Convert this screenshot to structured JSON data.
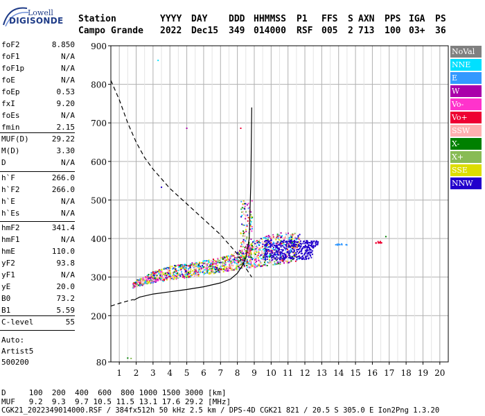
{
  "logo": {
    "top": "Lowell",
    "main": "DIGISONDE"
  },
  "header": {
    "labels": [
      "Station",
      "YYYY",
      "DAY",
      "DDD",
      "HHMMSS",
      "P1",
      "FFS",
      "S",
      "AXN",
      "PPS",
      "IGA",
      "PS"
    ],
    "values": [
      "Campo Grande",
      "2022",
      "Dec15",
      "349",
      "014000",
      "RSF",
      "005",
      "2",
      "713",
      "100",
      "03+",
      "36"
    ]
  },
  "params_group1": [
    {
      "label": "foF2",
      "value": "8.850"
    },
    {
      "label": "foF1",
      "value": "N/A"
    },
    {
      "label": "foF1p",
      "value": "N/A"
    },
    {
      "label": "foE",
      "value": "N/A"
    },
    {
      "label": "foEp",
      "value": "0.53"
    },
    {
      "label": "fxI",
      "value": "9.20"
    },
    {
      "label": "foEs",
      "value": "N/A"
    },
    {
      "label": "fmin",
      "value": "2.15"
    }
  ],
  "params_group2": [
    {
      "label": "MUF(D)",
      "value": "29.22"
    },
    {
      "label": "M(D)",
      "value": "3.30"
    },
    {
      "label": "D",
      "value": "N/A"
    }
  ],
  "params_group3": [
    {
      "label": "h`F",
      "value": "266.0"
    },
    {
      "label": "h`F2",
      "value": "266.0"
    },
    {
      "label": "h`E",
      "value": "N/A"
    },
    {
      "label": "h`Es",
      "value": "N/A"
    }
  ],
  "params_group4": [
    {
      "label": "hmF2",
      "value": "341.4"
    },
    {
      "label": "hmF1",
      "value": "N/A"
    },
    {
      "label": "hmE",
      "value": "110.0"
    },
    {
      "label": "yF2",
      "value": "93.8"
    },
    {
      "label": "yF1",
      "value": "N/A"
    },
    {
      "label": "yE",
      "value": "20.0"
    },
    {
      "label": "B0",
      "value": "73.2"
    },
    {
      "label": "B1",
      "value": "5.59"
    }
  ],
  "params_group5": [
    {
      "label": "C-level",
      "value": "55"
    }
  ],
  "autoscale": [
    "Auto:",
    "Artist5",
    "500200"
  ],
  "footer": {
    "d_line": "D     100  200  400  600  800 1000 1500 3000 [km]",
    "muf_line": "MUF   9.2  9.3  9.7 10.5 11.5 13.1 17.6 29.2 [MHz]",
    "file_line": "CGK21_2022349014000.RSF / 384fx512h 50 kHz 2.5 km / DPS-4D CGK21 821 / 20.5 S 305.0 E Ion2Png 1.3.20"
  },
  "legend": [
    {
      "label": "NoVal",
      "color": "#808080"
    },
    {
      "label": "NNE",
      "color": "#00e0ff"
    },
    {
      "label": "E",
      "color": "#3399ff"
    },
    {
      "label": "W",
      "color": "#aa00aa"
    },
    {
      "label": "Vo-",
      "color": "#ff33cc"
    },
    {
      "label": "Vo+",
      "color": "#ee0033"
    },
    {
      "label": "SSW",
      "color": "#ffb0b0"
    },
    {
      "label": "X-",
      "color": "#008000"
    },
    {
      "label": "X+",
      "color": "#88bb55"
    },
    {
      "label": "SSE",
      "color": "#dddd00"
    },
    {
      "label": "NNW",
      "color": "#2200cc"
    }
  ],
  "chart_data": {
    "type": "scatter",
    "xlim": [
      0.5,
      20.5
    ],
    "ylim": [
      80,
      900
    ],
    "x_ticks": [
      1,
      2,
      3,
      4,
      5,
      6,
      7,
      8,
      9,
      10,
      11,
      12,
      13,
      14,
      15,
      16,
      17,
      18,
      19,
      20
    ],
    "y_ticks": [
      80,
      200,
      300,
      400,
      500,
      600,
      700,
      800,
      900
    ],
    "grid": true,
    "legend_position": "right",
    "profile_solid": {
      "x": [
        1.85,
        2.2,
        3.0,
        4.0,
        5.0,
        6.0,
        7.0,
        7.6,
        8.0,
        8.3,
        8.5,
        8.7,
        8.8,
        8.85
      ],
      "y": [
        240,
        248,
        256,
        262,
        268,
        275,
        285,
        295,
        310,
        330,
        350,
        400,
        550,
        740
      ]
    },
    "profile_dashed": {
      "x": [
        0.5,
        1.0,
        1.5,
        2.0,
        2.5,
        3.0,
        3.5,
        4.0,
        5.0,
        6.0,
        7.0,
        8.0,
        8.4,
        8.85
      ],
      "y": [
        810,
        760,
        700,
        650,
        610,
        580,
        555,
        530,
        490,
        450,
        410,
        360,
        330,
        300
      ]
    },
    "profile_lower_dashed": {
      "x": [
        0.5,
        1.0,
        1.5,
        1.85
      ],
      "y": [
        225,
        232,
        238,
        242
      ]
    },
    "trace_band": {
      "x": [
        1.8,
        2.5,
        3.0,
        4.0,
        5.0,
        6.0,
        7.0,
        8.0,
        8.5,
        9.0,
        10.0,
        11.0,
        11.7
      ],
      "y_low": [
        272,
        280,
        285,
        292,
        298,
        305,
        312,
        320,
        322,
        325,
        330,
        336,
        340
      ],
      "y_high": [
        288,
        300,
        315,
        328,
        335,
        342,
        350,
        365,
        380,
        395,
        410,
        418,
        415
      ]
    },
    "scatter_clusters": [
      {
        "color": "#2200cc",
        "x": [
          9.6,
          12.5
        ],
        "y": [
          345,
          395
        ]
      },
      {
        "color": "#2200cc",
        "x": [
          12.0,
          12.8
        ],
        "y": [
          375,
          395
        ]
      },
      {
        "color": "#3399ff",
        "x": [
          13.8,
          14.5
        ],
        "y": [
          383,
          386
        ]
      },
      {
        "color": "#ee0033",
        "x": [
          16.2,
          16.6
        ],
        "y": [
          388,
          392
        ]
      }
    ],
    "isolated_points": [
      {
        "x": 1.5,
        "y": 90,
        "color": "#008000"
      },
      {
        "x": 1.7,
        "y": 89,
        "color": "#88bb55"
      },
      {
        "x": 3.3,
        "y": 862,
        "color": "#00e0ff"
      },
      {
        "x": 5.0,
        "y": 686,
        "color": "#aa00aa"
      },
      {
        "x": 8.2,
        "y": 686,
        "color": "#ee0033"
      },
      {
        "x": 3.5,
        "y": 533,
        "color": "#2200cc"
      },
      {
        "x": 16.8,
        "y": 405,
        "color": "#008000"
      }
    ]
  }
}
